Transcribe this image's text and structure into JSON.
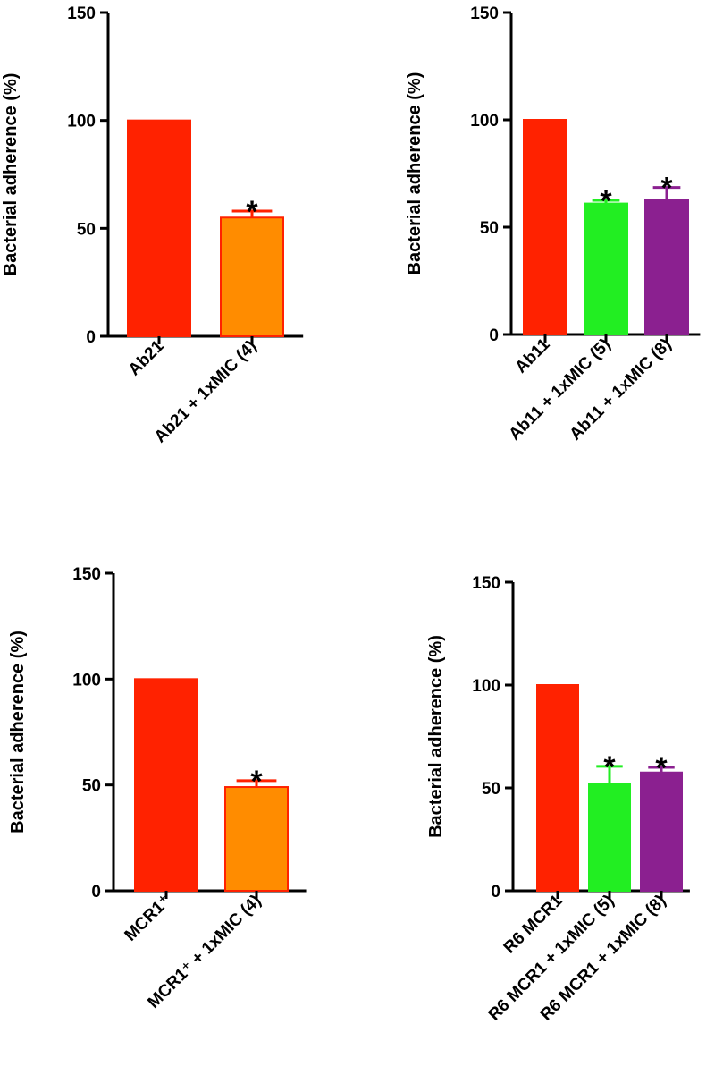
{
  "chart_data": [
    {
      "type": "bar",
      "panel": "top-left",
      "ylabel": "Bacterial adherence (%)",
      "ylim": [
        0,
        150
      ],
      "yticks": [
        0,
        50,
        100,
        150
      ],
      "categories": [
        "Ab21",
        "Ab21 + 1xMIC (4)"
      ],
      "values": [
        100,
        55
      ],
      "errors": [
        0,
        3
      ],
      "significance": [
        "",
        "*"
      ],
      "colors": [
        "#ff2200",
        "#ff8c00"
      ],
      "edge_colors": [
        "#ff2200",
        "#ff2200"
      ]
    },
    {
      "type": "bar",
      "panel": "top-right",
      "ylabel": "Bacterial adherence (%)",
      "ylim": [
        0,
        150
      ],
      "yticks": [
        0,
        50,
        100,
        150
      ],
      "categories": [
        "Ab11",
        "Ab11 + 1xMIC (5)",
        "Ab11 + 1xMIC (8)"
      ],
      "values": [
        100,
        61,
        62.5
      ],
      "errors": [
        0,
        1.5,
        6
      ],
      "significance": [
        "",
        "*",
        "*"
      ],
      "colors": [
        "#ff2200",
        "#22ee22",
        "#8b2090"
      ],
      "edge_colors": [
        "#ff2200",
        "#22ee22",
        "#8b2090"
      ]
    },
    {
      "type": "bar",
      "panel": "bottom-left",
      "ylabel": "Bacterial adherence (%)",
      "ylim": [
        0,
        150
      ],
      "yticks": [
        0,
        50,
        100,
        150
      ],
      "categories": [
        "MCR1⁺",
        "MCR1⁺ + 1xMIC (4)"
      ],
      "values": [
        100,
        49
      ],
      "errors": [
        0,
        3
      ],
      "significance": [
        "",
        "*"
      ],
      "colors": [
        "#ff2200",
        "#ff8c00"
      ],
      "edge_colors": [
        "#ff2200",
        "#ff2200"
      ]
    },
    {
      "type": "bar",
      "panel": "bottom-right",
      "ylabel": "Bacterial adherence (%)",
      "ylim": [
        0,
        150
      ],
      "yticks": [
        0,
        50,
        100,
        150
      ],
      "categories": [
        "R6 MCR1",
        "R6 MCR1 + 1xMIC (5)",
        "R6 MCR1 + 1xMIC (8)"
      ],
      "values": [
        100,
        52,
        57.5
      ],
      "errors": [
        0,
        8.5,
        2.5
      ],
      "significance": [
        "",
        "*",
        "*"
      ],
      "colors": [
        "#ff2200",
        "#22ee22",
        "#8b2090"
      ],
      "edge_colors": [
        "#ff2200",
        "#22ee22",
        "#8b2090"
      ]
    }
  ]
}
